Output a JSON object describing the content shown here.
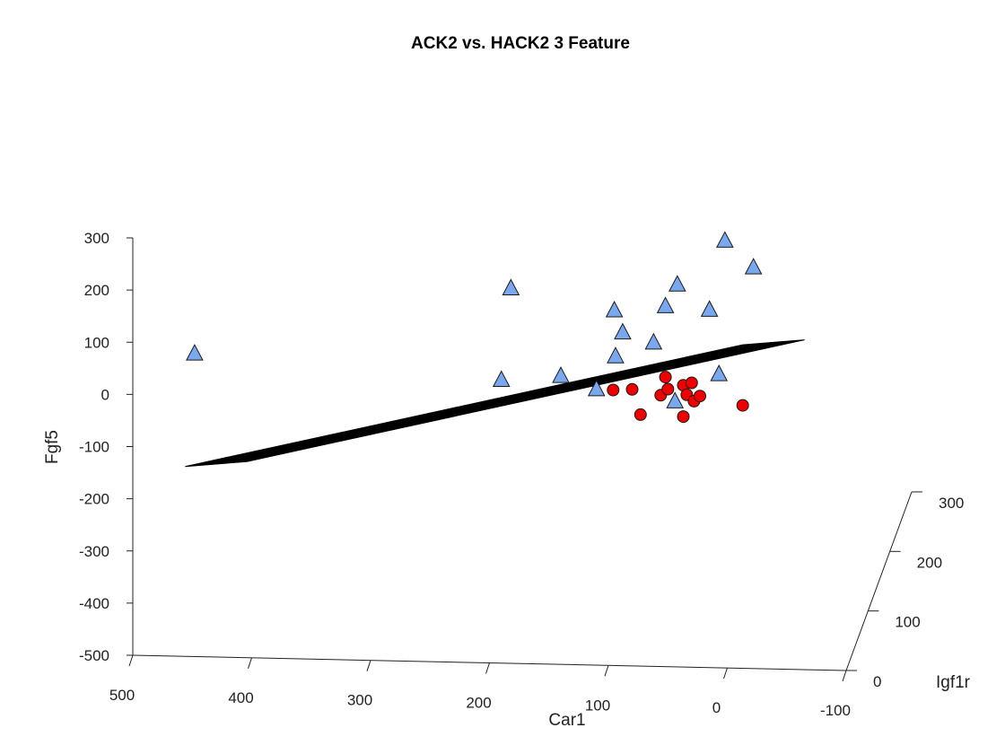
{
  "chart_data": {
    "type": "scatter3d",
    "title": "ACK2 vs. HACK2 3 Feature",
    "xlabel": "Car1",
    "ylabel": "Igf1r",
    "zlabel": "Fgf5",
    "xlim": [
      -100,
      500
    ],
    "ylim": [
      0,
      300
    ],
    "zlim": [
      -500,
      300
    ],
    "x_ticks": [
      "500",
      "400",
      "300",
      "200",
      "100",
      "0",
      "-100"
    ],
    "y_ticks": [
      "0",
      "100",
      "200",
      "300"
    ],
    "z_ticks": [
      "300",
      "200",
      "100",
      "0",
      "-100",
      "-200",
      "-300",
      "-400",
      "-500"
    ],
    "grid": false,
    "legend": "none",
    "series": [
      {
        "marker": "triangle",
        "color": "#79a8ee",
        "points": [
          {
            "car1": 448,
            "fgf5": 80
          },
          {
            "car1": 182,
            "fgf5": 218
          },
          {
            "car1": 190,
            "fgf5": 42
          },
          {
            "car1": 140,
            "fgf5": 52
          },
          {
            "car1": 110,
            "fgf5": 28
          },
          {
            "car1": 95,
            "fgf5": 180
          },
          {
            "car1": 88,
            "fgf5": 138
          },
          {
            "car1": 94,
            "fgf5": 92
          },
          {
            "car1": 62,
            "fgf5": 120
          },
          {
            "car1": 42,
            "fgf5": 232
          },
          {
            "car1": 44,
            "fgf5": 8
          },
          {
            "car1": 52,
            "fgf5": 190
          },
          {
            "car1": 15,
            "fgf5": 185
          },
          {
            "car1": 2,
            "fgf5": 318
          },
          {
            "car1": -22,
            "fgf5": 268
          },
          {
            "car1": 7,
            "fgf5": 62
          }
        ]
      },
      {
        "marker": "circle",
        "color": "#ee0000",
        "points": [
          {
            "car1": 96,
            "fgf5": 28
          },
          {
            "car1": 80,
            "fgf5": 30
          },
          {
            "car1": 73,
            "fgf5": -18
          },
          {
            "car1": 52,
            "fgf5": 55
          },
          {
            "car1": 56,
            "fgf5": 20
          },
          {
            "car1": 50,
            "fgf5": 32
          },
          {
            "car1": 37,
            "fgf5": 40
          },
          {
            "car1": 30,
            "fgf5": 45
          },
          {
            "car1": 34,
            "fgf5": 22
          },
          {
            "car1": 28,
            "fgf5": 10
          },
          {
            "car1": 23,
            "fgf5": 20
          },
          {
            "car1": 37,
            "fgf5": -20
          },
          {
            "car1": -13,
            "fgf5": 4
          }
        ]
      }
    ],
    "plane": {
      "color": "#000000",
      "corners_car1_fgf5": [
        [
          456,
          -136
        ],
        [
          404,
          -124
        ],
        [
          -65,
          132
        ],
        [
          -13,
          120
        ]
      ]
    }
  }
}
